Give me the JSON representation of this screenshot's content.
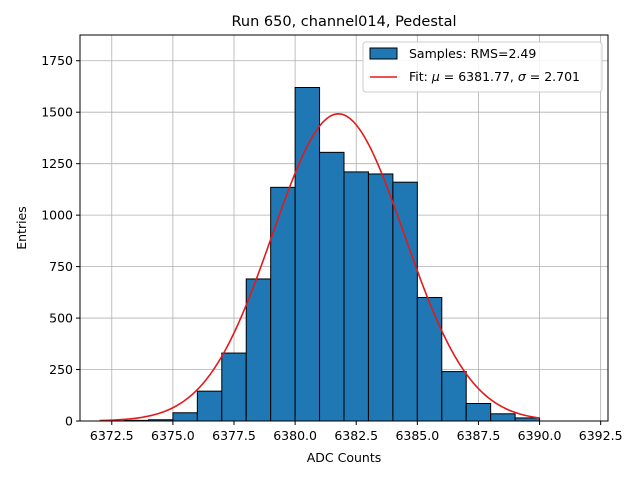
{
  "chart_data": {
    "type": "bar",
    "title": "Run 650, channel014, Pedestal",
    "xlabel": "ADC Counts",
    "ylabel": "Entries",
    "xlim": [
      6371.2,
      6392.8
    ],
    "ylim": [
      0,
      1875
    ],
    "xticks": [
      6372.5,
      6375.0,
      6377.5,
      6380.0,
      6382.5,
      6385.0,
      6387.5,
      6390.0,
      6392.5
    ],
    "xtick_labels": [
      "6372.5",
      "6375.0",
      "6377.5",
      "6380.0",
      "6382.5",
      "6385.0",
      "6387.5",
      "6390.0",
      "6392.5"
    ],
    "yticks": [
      0,
      250,
      500,
      750,
      1000,
      1250,
      1500,
      1750
    ],
    "ytick_labels": [
      "0",
      "250",
      "500",
      "750",
      "1000",
      "1250",
      "1500",
      "1750"
    ],
    "grid": true,
    "legend_position": "top-right",
    "bin_width": 1,
    "series": [
      {
        "name": "Samples: RMS=2.49",
        "kind": "histogram",
        "color": "#1f77b4",
        "edgecolor": "#000000",
        "bin_starts": [
          6373,
          6374,
          6375,
          6376,
          6377,
          6378,
          6379,
          6380,
          6381,
          6382,
          6383,
          6384,
          6385,
          6386,
          6387,
          6388,
          6389
        ],
        "values": [
          3,
          6,
          40,
          145,
          330,
          690,
          1135,
          1620,
          1305,
          1210,
          1200,
          1160,
          600,
          240,
          85,
          35,
          15
        ]
      },
      {
        "name": "Fit: μ = 6381.77, σ = 2.701",
        "kind": "gaussian-fit",
        "color": "#e31a1c",
        "mu": 6381.77,
        "sigma": 2.701,
        "amplitude": 1492,
        "x_range": [
          6372,
          6390
        ]
      }
    ]
  }
}
